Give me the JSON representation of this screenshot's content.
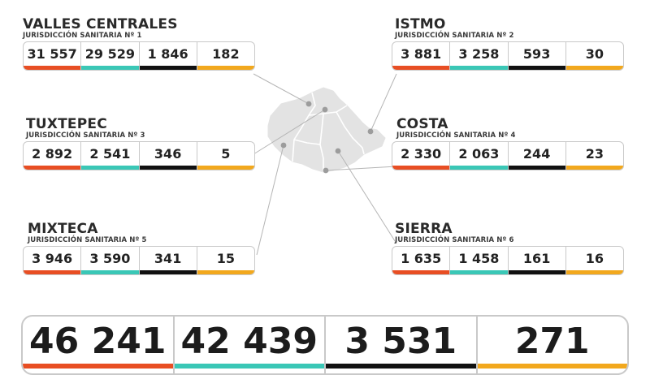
{
  "regions": [
    {
      "name": "VALLES CENTRALES",
      "jurisdiction": "JURISDICCIÓN SANITARIA Nº 1",
      "values": [
        "31 557",
        "29 529",
        "1 846",
        "182"
      ]
    },
    {
      "name": "ISTMO",
      "jurisdiction": "JURISDICCIÓN SANITARIA Nº 2",
      "values": [
        "3 881",
        "3 258",
        "593",
        "30"
      ]
    },
    {
      "name": "TUXTEPEC",
      "jurisdiction": "JURISDICCIÓN SANITARIA Nº 3",
      "values": [
        "2 892",
        "2 541",
        "346",
        "5"
      ]
    },
    {
      "name": "COSTA",
      "jurisdiction": "JURISDICCIÓN SANITARIA Nº 4",
      "values": [
        "2 330",
        "2 063",
        "244",
        "23"
      ]
    },
    {
      "name": "MIXTECA",
      "jurisdiction": "JURISDICCIÓN SANITARIA Nº 5",
      "values": [
        "3 946",
        "3 590",
        "341",
        "15"
      ]
    },
    {
      "name": "SIERRA",
      "jurisdiction": "JURISDICCIÓN SANITARIA Nº 6",
      "values": [
        "1 635",
        "1 458",
        "161",
        "16"
      ]
    }
  ],
  "totals": [
    "46 241",
    "42 439",
    "3 531",
    "271"
  ],
  "colors": {
    "col1": "#e84e23",
    "col2": "#3ac7b6",
    "col3": "#111111",
    "col4": "#f2a81d",
    "map_fill": "#e3e3e3",
    "map_outline": "#ffffff",
    "leader_line": "#b5b5b5",
    "dot": "#9c9c9c",
    "box_border": "#c9c9c9"
  }
}
